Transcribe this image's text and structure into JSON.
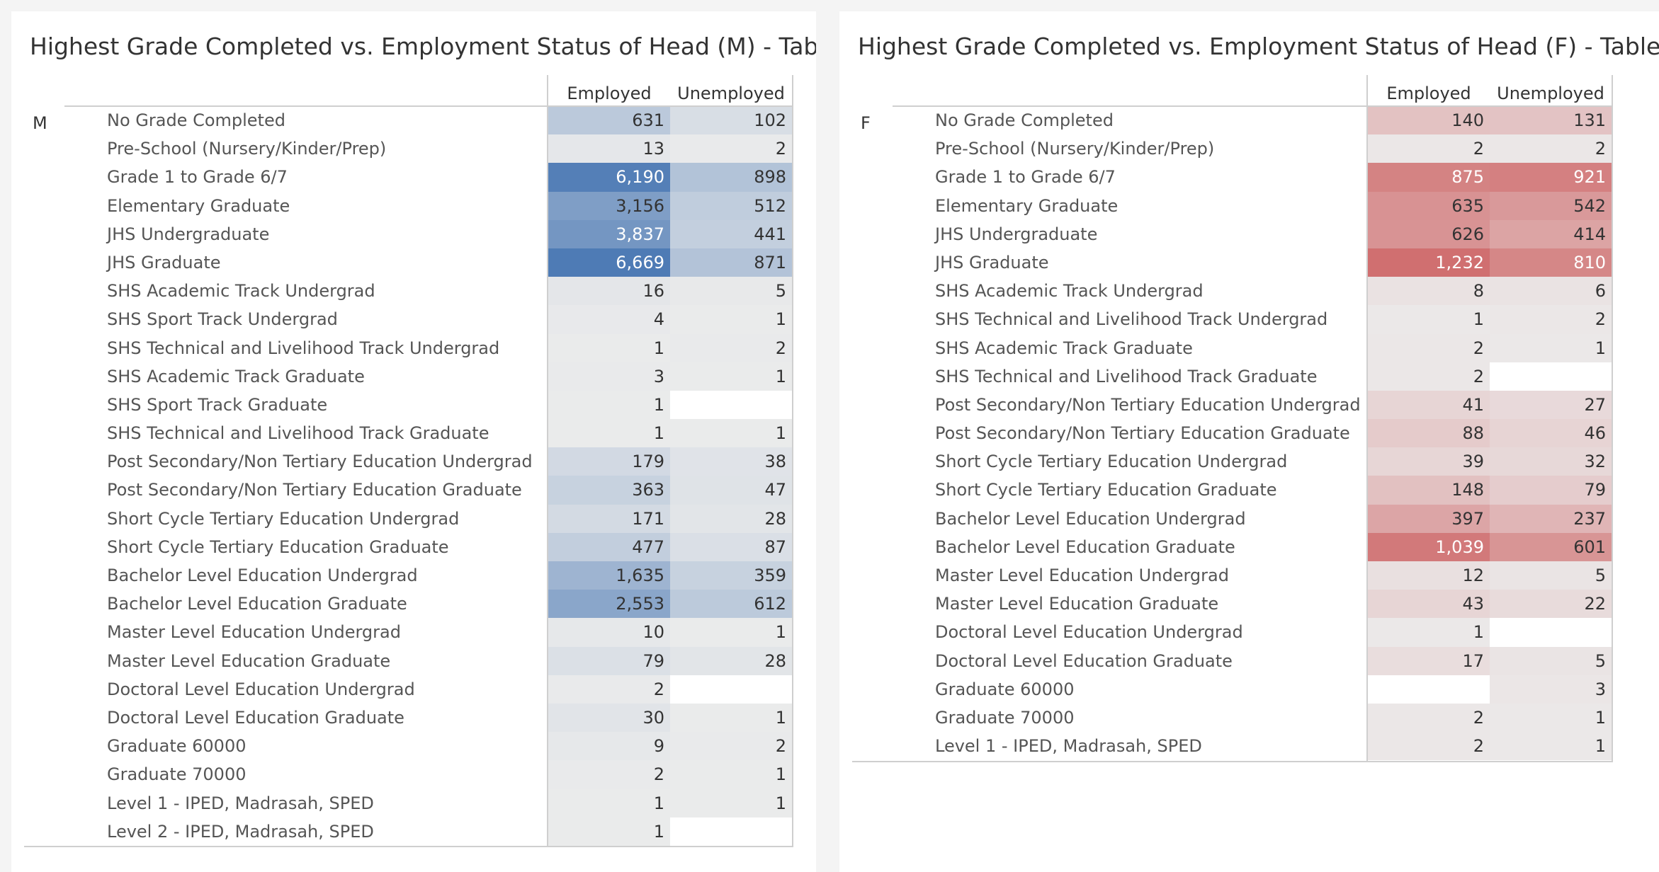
{
  "chart_data": [
    {
      "type": "table",
      "title": "Highest Grade Completed vs. Employment Status of Head (M) - Table",
      "group": "M",
      "columns": [
        "Employed",
        "Unemployed"
      ],
      "color_scale": {
        "low": "#ececec",
        "high": "#4e7bb5"
      },
      "rows": [
        {
          "label": "No Grade Completed",
          "employed": 631,
          "unemployed": 102
        },
        {
          "label": "Pre-School (Nursery/Kinder/Prep)",
          "employed": 13,
          "unemployed": 2
        },
        {
          "label": "Grade 1 to Grade 6/7",
          "employed": 6190,
          "unemployed": 898
        },
        {
          "label": "Elementary Graduate",
          "employed": 3156,
          "unemployed": 512
        },
        {
          "label": "JHS Undergraduate",
          "employed": 3837,
          "unemployed": 441
        },
        {
          "label": "JHS Graduate",
          "employed": 6669,
          "unemployed": 871
        },
        {
          "label": "SHS Academic Track Undergrad",
          "employed": 16,
          "unemployed": 5
        },
        {
          "label": "SHS Sport Track Undergrad",
          "employed": 4,
          "unemployed": 1
        },
        {
          "label": "SHS Technical and Livelihood Track Undergrad",
          "employed": 1,
          "unemployed": 2
        },
        {
          "label": "SHS Academic Track Graduate",
          "employed": 3,
          "unemployed": 1
        },
        {
          "label": "SHS Sport Track Graduate",
          "employed": 1,
          "unemployed": null
        },
        {
          "label": "SHS Technical and Livelihood Track Graduate",
          "employed": 1,
          "unemployed": 1
        },
        {
          "label": "Post Secondary/Non Tertiary Education Undergrad",
          "employed": 179,
          "unemployed": 38
        },
        {
          "label": "Post Secondary/Non Tertiary Education Graduate",
          "employed": 363,
          "unemployed": 47
        },
        {
          "label": "Short Cycle Tertiary Education Undergrad",
          "employed": 171,
          "unemployed": 28
        },
        {
          "label": "Short Cycle Tertiary Education Graduate",
          "employed": 477,
          "unemployed": 87
        },
        {
          "label": "Bachelor Level Education Undergrad",
          "employed": 1635,
          "unemployed": 359
        },
        {
          "label": "Bachelor Level Education Graduate",
          "employed": 2553,
          "unemployed": 612
        },
        {
          "label": "Master Level Education Undergrad",
          "employed": 10,
          "unemployed": 1
        },
        {
          "label": "Master Level Education Graduate",
          "employed": 79,
          "unemployed": 28
        },
        {
          "label": "Doctoral Level Education Undergrad",
          "employed": 2,
          "unemployed": null
        },
        {
          "label": "Doctoral Level Education Graduate",
          "employed": 30,
          "unemployed": 1
        },
        {
          "label": "Graduate 60000",
          "employed": 9,
          "unemployed": 2
        },
        {
          "label": "Graduate 70000",
          "employed": 2,
          "unemployed": 1
        },
        {
          "label": "Level 1 - IPED, Madrasah, SPED",
          "employed": 1,
          "unemployed": 1
        },
        {
          "label": "Level 2 - IPED, Madrasah, SPED",
          "employed": 1,
          "unemployed": null
        }
      ]
    },
    {
      "type": "table",
      "title": "Highest Grade Completed vs. Employment Status of Head (F) - Table",
      "group": "F",
      "columns": [
        "Employed",
        "Unemployed"
      ],
      "color_scale": {
        "low": "#ececec",
        "high": "#d06f70"
      },
      "rows": [
        {
          "label": "No Grade Completed",
          "employed": 140,
          "unemployed": 131
        },
        {
          "label": "Pre-School (Nursery/Kinder/Prep)",
          "employed": 2,
          "unemployed": 2
        },
        {
          "label": "Grade 1 to Grade 6/7",
          "employed": 875,
          "unemployed": 921
        },
        {
          "label": "Elementary Graduate",
          "employed": 635,
          "unemployed": 542
        },
        {
          "label": "JHS Undergraduate",
          "employed": 626,
          "unemployed": 414
        },
        {
          "label": "JHS Graduate",
          "employed": 1232,
          "unemployed": 810
        },
        {
          "label": "SHS Academic Track Undergrad",
          "employed": 8,
          "unemployed": 6
        },
        {
          "label": "SHS Technical and Livelihood Track Undergrad",
          "employed": 1,
          "unemployed": 2
        },
        {
          "label": "SHS Academic Track Graduate",
          "employed": 2,
          "unemployed": 1
        },
        {
          "label": "SHS Technical and Livelihood Track Graduate",
          "employed": 2,
          "unemployed": null
        },
        {
          "label": "Post Secondary/Non Tertiary Education Undergrad",
          "employed": 41,
          "unemployed": 27
        },
        {
          "label": "Post Secondary/Non Tertiary Education Graduate",
          "employed": 88,
          "unemployed": 46
        },
        {
          "label": "Short Cycle Tertiary Education Undergrad",
          "employed": 39,
          "unemployed": 32
        },
        {
          "label": "Short Cycle Tertiary Education Graduate",
          "employed": 148,
          "unemployed": 79
        },
        {
          "label": "Bachelor Level Education Undergrad",
          "employed": 397,
          "unemployed": 237
        },
        {
          "label": "Bachelor Level Education Graduate",
          "employed": 1039,
          "unemployed": 601
        },
        {
          "label": "Master Level Education Undergrad",
          "employed": 12,
          "unemployed": 5
        },
        {
          "label": "Master Level Education Graduate",
          "employed": 43,
          "unemployed": 22
        },
        {
          "label": "Doctoral Level Education Undergrad",
          "employed": 1,
          "unemployed": null
        },
        {
          "label": "Doctoral Level Education Graduate",
          "employed": 17,
          "unemployed": 5
        },
        {
          "label": "Graduate 60000",
          "employed": null,
          "unemployed": 3
        },
        {
          "label": "Graduate 70000",
          "employed": 2,
          "unemployed": 1
        },
        {
          "label": "Level 1 - IPED, Madrasah, SPED",
          "employed": 2,
          "unemployed": 1
        }
      ]
    }
  ]
}
